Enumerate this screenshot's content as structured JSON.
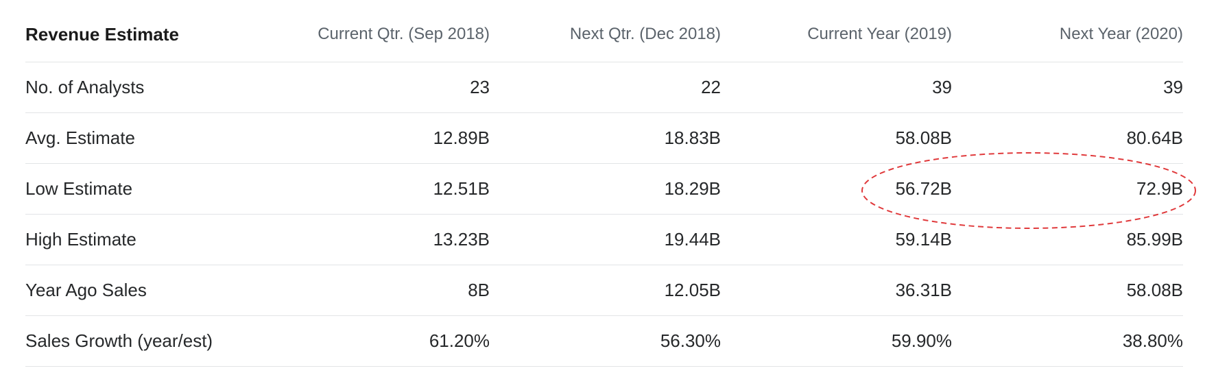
{
  "table": {
    "title": "Revenue Estimate",
    "columns": [
      "Current Qtr. (Sep 2018)",
      "Next Qtr. (Dec 2018)",
      "Current Year (2019)",
      "Next Year (2020)"
    ],
    "rows": [
      {
        "label": "No. of Analysts",
        "values": [
          "23",
          "22",
          "39",
          "39"
        ]
      },
      {
        "label": "Avg. Estimate",
        "values": [
          "12.89B",
          "18.83B",
          "58.08B",
          "80.64B"
        ]
      },
      {
        "label": "Low Estimate",
        "values": [
          "12.51B",
          "18.29B",
          "56.72B",
          "72.9B"
        ]
      },
      {
        "label": "High Estimate",
        "values": [
          "13.23B",
          "19.44B",
          "59.14B",
          "85.99B"
        ]
      },
      {
        "label": "Year Ago Sales",
        "values": [
          "8B",
          "12.05B",
          "36.31B",
          "58.08B"
        ]
      },
      {
        "label": "Sales Growth (year/est)",
        "values": [
          "61.20%",
          "56.30%",
          "59.90%",
          "38.80%"
        ]
      }
    ]
  },
  "annotation": {
    "shape": "dashed-ellipse",
    "color": "#e0393b",
    "circled_row": "Low Estimate",
    "circled_columns": [
      "Current Year (2019)",
      "Next Year (2020)"
    ],
    "circled_values": [
      "56.72B",
      "72.9B"
    ]
  },
  "colors": {
    "background": "#ffffff",
    "title_text": "#1b1b1b",
    "header_text": "#5b636b",
    "body_text": "#26282a",
    "divider": "#e2e4e6",
    "annotation_red": "#e0393b"
  }
}
